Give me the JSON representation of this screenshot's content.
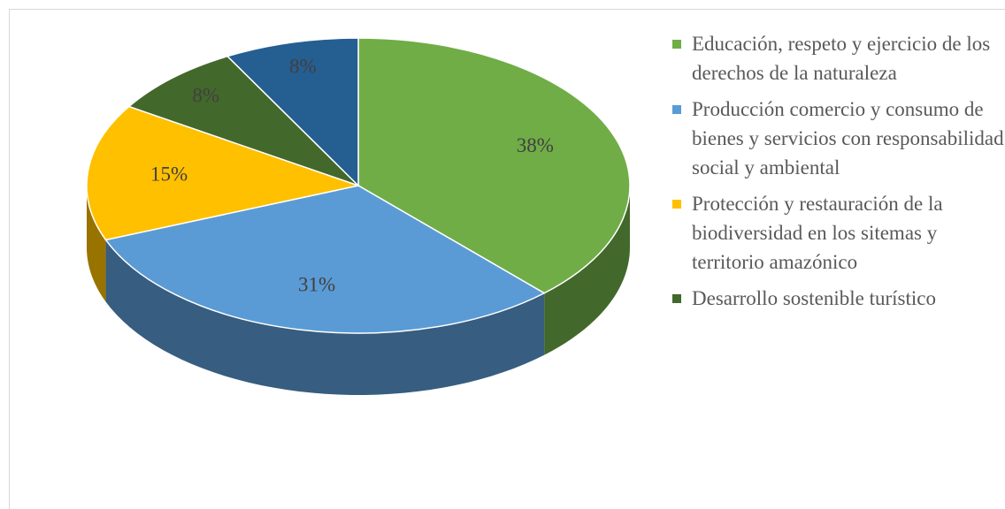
{
  "chart_data": {
    "type": "pie",
    "categories": [
      "Educación, respeto y ejercicio de los derechos de la naturaleza",
      "Producción comercio y consumo de bienes y servicios con responsabilidad social y ambiental",
      "Protección y restauración de la biodiversidad en los sitemas y territorio amazónico",
      "Desarrollo sostenible turístico",
      null
    ],
    "values": [
      38,
      31,
      15,
      8,
      8
    ],
    "value_labels": [
      "38%",
      "31%",
      "15%",
      "8%",
      "8%"
    ],
    "colors": [
      "#70ad47",
      "#5b9bd5",
      "#ffc000",
      "#43682b",
      "#255e91"
    ],
    "legend": "right"
  }
}
